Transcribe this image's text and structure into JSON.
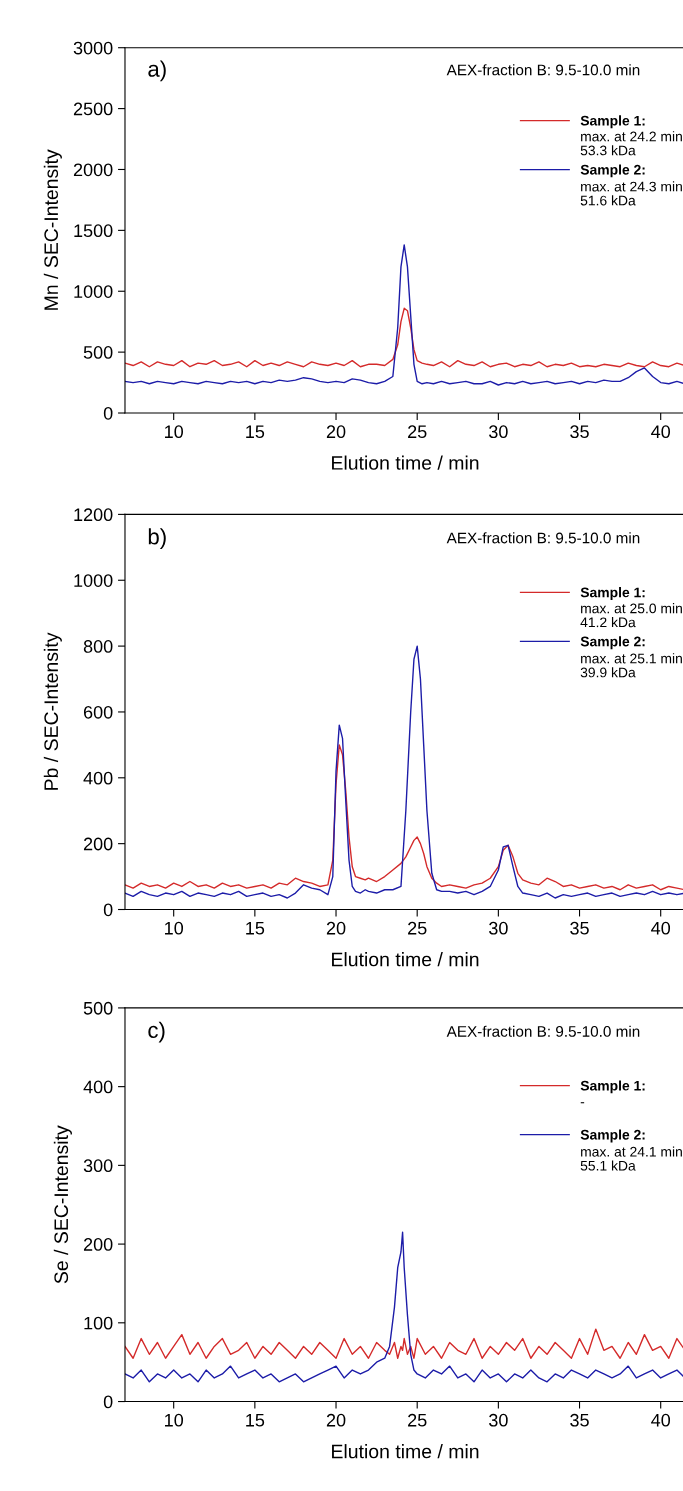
{
  "chart_data": [
    {
      "type": "line",
      "xlabel": "Elution time / min",
      "ylabel": "Mn / SEC-Intensity",
      "xlim": [
        7,
        41.5
      ],
      "xticks": [
        10,
        15,
        20,
        25,
        30,
        35,
        40
      ],
      "ylim": [
        0,
        3000
      ],
      "yticks": [
        0,
        500,
        1000,
        1500,
        2000,
        2500,
        3000
      ],
      "grid": false,
      "legend": "top right",
      "marker": "none",
      "line_style": "solid",
      "annotations": [
        "a)",
        "AEX-fraction B: 9.5-10.0 min",
        "max. at 24.2 min\n53.3 kDa",
        "max. at 24.3 min\n51.6 kDa"
      ],
      "x": [
        7,
        7.5,
        8,
        8.5,
        9,
        9.5,
        10,
        10.5,
        11,
        11.5,
        12,
        12.5,
        13,
        13.5,
        14,
        14.5,
        15,
        15.5,
        16,
        16.5,
        17,
        17.5,
        18,
        18.5,
        19,
        19.5,
        20,
        20.5,
        21,
        21.5,
        22,
        22.5,
        23,
        23.5,
        23.8,
        24,
        24.2,
        24.4,
        24.6,
        24.8,
        25,
        25.3,
        25.6,
        26,
        26.5,
        27,
        27.5,
        28,
        28.5,
        29,
        29.5,
        30,
        30.5,
        31,
        31.5,
        32,
        32.5,
        33,
        33.5,
        34,
        34.5,
        35,
        35.5,
        36,
        36.5,
        37,
        37.5,
        38,
        38.5,
        39,
        39.5,
        40,
        40.5,
        41,
        41.5
      ],
      "series": [
        {
          "name": "Sample 1:",
          "color": "#d42a2a",
          "values": [
            410,
            390,
            420,
            380,
            420,
            400,
            390,
            430,
            380,
            410,
            400,
            430,
            390,
            400,
            420,
            380,
            430,
            390,
            410,
            390,
            420,
            400,
            380,
            420,
            400,
            390,
            410,
            390,
            430,
            380,
            400,
            400,
            390,
            440,
            560,
            750,
            860,
            840,
            700,
            520,
            430,
            410,
            400,
            390,
            420,
            380,
            430,
            400,
            390,
            420,
            380,
            400,
            410,
            380,
            400,
            390,
            420,
            380,
            400,
            390,
            410,
            380,
            390,
            380,
            400,
            390,
            380,
            410,
            390,
            380,
            420,
            390,
            380,
            410,
            390
          ]
        },
        {
          "name": "Sample 2:",
          "color": "#1c1ca8",
          "values": [
            260,
            250,
            260,
            240,
            260,
            250,
            240,
            260,
            250,
            240,
            260,
            250,
            240,
            260,
            250,
            260,
            240,
            260,
            250,
            270,
            260,
            270,
            290,
            280,
            260,
            250,
            260,
            250,
            280,
            270,
            250,
            240,
            260,
            300,
            700,
            1200,
            1380,
            1200,
            800,
            400,
            260,
            240,
            250,
            240,
            260,
            240,
            250,
            260,
            240,
            240,
            260,
            230,
            250,
            240,
            260,
            240,
            250,
            260,
            240,
            250,
            260,
            240,
            260,
            250,
            270,
            260,
            260,
            290,
            340,
            370,
            300,
            250,
            240,
            260,
            240
          ]
        }
      ]
    },
    {
      "type": "line",
      "xlabel": "Elution time / min",
      "ylabel": "Pb / SEC-Intensity",
      "xlim": [
        7,
        41.5
      ],
      "xticks": [
        10,
        15,
        20,
        25,
        30,
        35,
        40
      ],
      "ylim": [
        0,
        1200
      ],
      "yticks": [
        0,
        200,
        400,
        600,
        800,
        1000,
        1200
      ],
      "grid": false,
      "legend": "top right",
      "marker": "none",
      "line_style": "solid",
      "annotations": [
        "b)",
        "AEX-fraction B: 9.5-10.0 min",
        "max. at 25.0 min\n41.2 kDa",
        "max. at 25.1 min\n39.9 kDa"
      ],
      "x": [
        7,
        7.5,
        8,
        8.5,
        9,
        9.5,
        10,
        10.5,
        11,
        11.5,
        12,
        12.5,
        13,
        13.5,
        14,
        14.5,
        15,
        15.5,
        16,
        16.5,
        17,
        17.5,
        18,
        18.5,
        19,
        19.5,
        19.8,
        20,
        20.2,
        20.4,
        20.6,
        20.8,
        21,
        21.2,
        21.5,
        21.8,
        22,
        22.5,
        23,
        23.5,
        24,
        24.3,
        24.6,
        24.8,
        25,
        25.2,
        25.4,
        25.6,
        25.9,
        26.2,
        26.5,
        27,
        27.5,
        28,
        28.5,
        29,
        29.5,
        30,
        30.3,
        30.6,
        30.9,
        31.2,
        31.5,
        32,
        32.5,
        33,
        33.5,
        34,
        34.5,
        35,
        35.5,
        36,
        36.5,
        37,
        37.5,
        38,
        38.5,
        39,
        39.5,
        40,
        40.5,
        41,
        41.5
      ],
      "series": [
        {
          "name": "Sample 1:",
          "color": "#d42a2a",
          "values": [
            75,
            65,
            80,
            70,
            75,
            65,
            80,
            70,
            85,
            70,
            75,
            65,
            80,
            70,
            75,
            65,
            70,
            75,
            65,
            80,
            75,
            95,
            85,
            80,
            70,
            75,
            150,
            380,
            500,
            470,
            360,
            220,
            130,
            100,
            95,
            90,
            95,
            85,
            100,
            120,
            140,
            160,
            190,
            210,
            220,
            200,
            170,
            130,
            95,
            80,
            70,
            75,
            70,
            65,
            75,
            80,
            95,
            130,
            180,
            195,
            160,
            110,
            90,
            80,
            75,
            95,
            85,
            70,
            75,
            65,
            70,
            75,
            65,
            70,
            60,
            75,
            65,
            70,
            75,
            60,
            70,
            65,
            60
          ]
        },
        {
          "name": "Sample 2:",
          "color": "#1c1ca8",
          "values": [
            50,
            40,
            55,
            45,
            40,
            50,
            45,
            55,
            40,
            50,
            45,
            40,
            50,
            45,
            55,
            40,
            45,
            50,
            40,
            45,
            35,
            50,
            75,
            65,
            60,
            45,
            100,
            420,
            560,
            520,
            330,
            150,
            70,
            55,
            50,
            60,
            55,
            50,
            60,
            60,
            70,
            300,
            600,
            760,
            800,
            700,
            500,
            300,
            110,
            60,
            55,
            55,
            50,
            55,
            45,
            55,
            70,
            120,
            190,
            195,
            130,
            70,
            50,
            45,
            40,
            50,
            35,
            45,
            40,
            45,
            50,
            40,
            45,
            50,
            40,
            45,
            50,
            45,
            55,
            45,
            50,
            45,
            50
          ]
        }
      ]
    },
    {
      "type": "line",
      "xlabel": "Elution time / min",
      "ylabel": "Se / SEC-Intensity",
      "xlim": [
        7,
        41.5
      ],
      "xticks": [
        10,
        15,
        20,
        25,
        30,
        35,
        40
      ],
      "ylim": [
        0,
        500
      ],
      "yticks": [
        0,
        100,
        200,
        300,
        400,
        500
      ],
      "grid": false,
      "legend": "top right",
      "marker": "none",
      "line_style": "solid",
      "annotations": [
        "c)",
        "AEX-fraction B: 9.5-10.0 min",
        "-",
        "max. at 24.1 min\n55.1 kDa"
      ],
      "x": [
        7,
        7.5,
        8,
        8.5,
        9,
        9.5,
        10,
        10.5,
        11,
        11.5,
        12,
        12.5,
        13,
        13.5,
        14,
        14.5,
        15,
        15.5,
        16,
        16.5,
        17,
        17.5,
        18,
        18.5,
        19,
        19.5,
        20,
        20.5,
        21,
        21.5,
        22,
        22.5,
        23,
        23.3,
        23.6,
        23.8,
        24,
        24.1,
        24.2,
        24.4,
        24.6,
        24.8,
        25,
        25.5,
        26,
        26.5,
        27,
        27.5,
        28,
        28.5,
        29,
        29.5,
        30,
        30.5,
        31,
        31.5,
        32,
        32.5,
        33,
        33.5,
        34,
        34.5,
        35,
        35.5,
        36,
        36.5,
        37,
        37.5,
        38,
        38.5,
        39,
        39.5,
        40,
        40.5,
        41,
        41.5
      ],
      "series": [
        {
          "name": "Sample 1:",
          "color": "#d42a2a",
          "values": [
            70,
            55,
            80,
            60,
            75,
            55,
            70,
            85,
            60,
            75,
            55,
            70,
            80,
            60,
            65,
            75,
            55,
            70,
            60,
            75,
            65,
            55,
            70,
            60,
            75,
            65,
            55,
            80,
            60,
            70,
            55,
            75,
            65,
            60,
            75,
            55,
            70,
            65,
            80,
            60,
            70,
            55,
            80,
            60,
            70,
            55,
            75,
            65,
            60,
            80,
            55,
            70,
            60,
            75,
            65,
            80,
            55,
            70,
            60,
            75,
            65,
            55,
            80,
            60,
            92,
            65,
            70,
            55,
            75,
            60,
            85,
            65,
            70,
            55,
            80,
            65
          ]
        },
        {
          "name": "Sample 2:",
          "color": "#1c1ca8",
          "values": [
            35,
            30,
            40,
            25,
            35,
            30,
            40,
            30,
            35,
            25,
            40,
            30,
            35,
            45,
            30,
            35,
            40,
            30,
            35,
            25,
            30,
            35,
            25,
            30,
            35,
            40,
            45,
            30,
            40,
            35,
            40,
            50,
            55,
            70,
            120,
            170,
            190,
            215,
            170,
            110,
            60,
            40,
            35,
            30,
            40,
            35,
            45,
            30,
            35,
            25,
            40,
            30,
            35,
            25,
            35,
            30,
            40,
            30,
            25,
            35,
            30,
            40,
            35,
            30,
            40,
            35,
            30,
            35,
            45,
            30,
            35,
            40,
            30,
            35,
            40,
            30
          ]
        }
      ]
    }
  ]
}
